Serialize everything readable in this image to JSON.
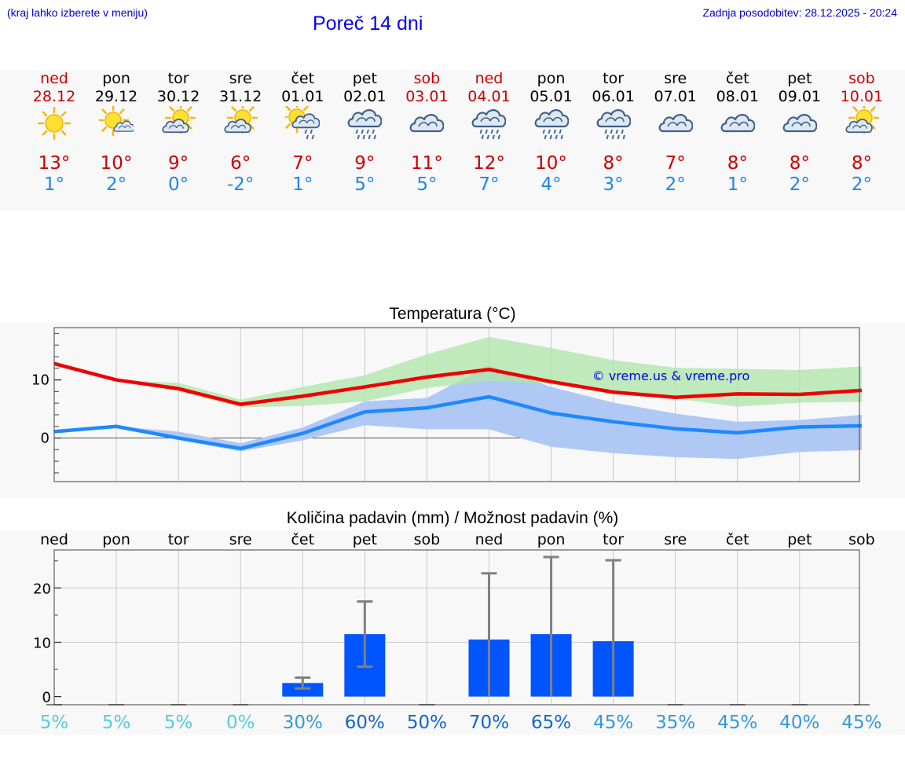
{
  "header": {
    "hint": "(kraj lahko izberete v meniju)",
    "title": "Poreč 14 dni",
    "updated": "Zadnja posodobitev: 28.12.2025 - 20:24"
  },
  "days": [
    {
      "name": "ned",
      "date": "28.12",
      "weekend": true,
      "icon": "sun-icon",
      "tmax": "13°",
      "tmin": "1°"
    },
    {
      "name": "pon",
      "date": "29.12",
      "weekend": false,
      "icon": "sun-small-cloud-icon",
      "tmax": "10°",
      "tmin": "2°"
    },
    {
      "name": "tor",
      "date": "30.12",
      "weekend": false,
      "icon": "sun-cloud-icon",
      "tmax": "9°",
      "tmin": "0°"
    },
    {
      "name": "sre",
      "date": "31.12",
      "weekend": false,
      "icon": "sun-cloud-icon",
      "tmax": "6°",
      "tmin": "-2°"
    },
    {
      "name": "čet",
      "date": "01.01",
      "weekend": false,
      "icon": "sun-cloud-rain-icon",
      "tmax": "7°",
      "tmin": "1°"
    },
    {
      "name": "pet",
      "date": "02.01",
      "weekend": false,
      "icon": "cloud-rain-icon",
      "tmax": "9°",
      "tmin": "5°"
    },
    {
      "name": "sob",
      "date": "03.01",
      "weekend": true,
      "icon": "cloud-icon",
      "tmax": "11°",
      "tmin": "5°"
    },
    {
      "name": "ned",
      "date": "04.01",
      "weekend": true,
      "icon": "cloud-rain-icon",
      "tmax": "12°",
      "tmin": "7°"
    },
    {
      "name": "pon",
      "date": "05.01",
      "weekend": false,
      "icon": "cloud-rain-icon",
      "tmax": "10°",
      "tmin": "4°"
    },
    {
      "name": "tor",
      "date": "06.01",
      "weekend": false,
      "icon": "cloud-rain-icon",
      "tmax": "8°",
      "tmin": "3°"
    },
    {
      "name": "sre",
      "date": "07.01",
      "weekend": false,
      "icon": "cloud-icon",
      "tmax": "7°",
      "tmin": "2°"
    },
    {
      "name": "čet",
      "date": "08.01",
      "weekend": false,
      "icon": "cloud-icon",
      "tmax": "8°",
      "tmin": "1°"
    },
    {
      "name": "pet",
      "date": "09.01",
      "weekend": false,
      "icon": "cloud-icon",
      "tmax": "8°",
      "tmin": "2°"
    },
    {
      "name": "sob",
      "date": "10.01",
      "weekend": true,
      "icon": "sun-cloud-icon",
      "tmax": "8°",
      "tmin": "2°"
    }
  ],
  "colors": {
    "max_line": "#ee0000",
    "min_line": "#1e88ff",
    "max_band": "#aee6a8",
    "min_band": "#b0c8f4",
    "overlap_band": "#7fc3a8",
    "precip_bar": "#0055ff",
    "error_bar": "#808080",
    "weekend": "#cc0000",
    "tmax_text": "#cc0000",
    "tmin_text": "#1e88e5"
  },
  "chart_data": [
    {
      "type": "line",
      "title": "Temperatura (°C)",
      "watermark": "© vreme.us & vreme.pro",
      "yticks": [
        0,
        10
      ],
      "ylim": [
        -7.5,
        19
      ],
      "series": [
        {
          "name": "max",
          "values": [
            12.8,
            10,
            8.5,
            5.8,
            7.2,
            8.8,
            10.5,
            11.8,
            9.7,
            7.9,
            7,
            7.6,
            7.5,
            8.2
          ]
        },
        {
          "name": "min",
          "values": [
            1.1,
            2,
            0,
            -1.8,
            0.8,
            4.5,
            5.2,
            7.1,
            4.3,
            2.8,
            1.6,
            0.9,
            1.9,
            2.1
          ]
        },
        {
          "name": "max_band_low",
          "values": [
            12.8,
            10,
            8,
            5.3,
            5.5,
            6.3,
            8.6,
            9.8,
            9.3,
            7.6,
            6.8,
            5.4,
            6.1,
            6.2
          ]
        },
        {
          "name": "max_band_high",
          "values": [
            12.8,
            10,
            9.5,
            6.6,
            8.8,
            10.8,
            14.4,
            17.4,
            15.5,
            13.4,
            12.1,
            11.9,
            11.7,
            12.3
          ]
        },
        {
          "name": "min_band_low",
          "values": [
            1.1,
            2,
            -0.3,
            -2.3,
            -0.4,
            2.2,
            1.5,
            1.5,
            -1.5,
            -2.6,
            -3.3,
            -3.6,
            -2.4,
            -2.1
          ]
        },
        {
          "name": "min_band_high",
          "values": [
            1.1,
            2,
            1.1,
            -0.9,
            1.8,
            6.3,
            6.9,
            12.5,
            8.8,
            6.1,
            4.2,
            2.8,
            3.1,
            4.0
          ]
        }
      ]
    },
    {
      "type": "bar",
      "title": "Količina padavin (mm) / Možnost padavin (%)",
      "categories": [
        "ned",
        "pon",
        "tor",
        "sre",
        "čet",
        "pet",
        "sob",
        "ned",
        "pon",
        "tor",
        "sre",
        "čet",
        "pet",
        "sob"
      ],
      "yticks": [
        0,
        10,
        20
      ],
      "ylim": [
        -1.5,
        27
      ],
      "values": [
        0,
        0,
        0,
        0,
        2.5,
        11.5,
        0,
        10.5,
        11.5,
        10.2,
        0,
        0,
        0,
        0
      ],
      "error_low": [
        0,
        0,
        0,
        0,
        1.5,
        5.5,
        0,
        0,
        0,
        0,
        0,
        0,
        0,
        0
      ],
      "error_high": [
        0,
        0,
        0,
        0,
        3.5,
        17.5,
        0,
        22.7,
        25.7,
        25.1,
        0,
        0,
        0,
        0
      ],
      "chance": [
        "5%",
        "5%",
        "5%",
        "0%",
        "30%",
        "60%",
        "50%",
        "70%",
        "65%",
        "45%",
        "35%",
        "45%",
        "40%",
        "45%"
      ],
      "chance_colors": [
        "#55ccdd",
        "#55ccdd",
        "#55ccdd",
        "#55ccdd",
        "#3399dd",
        "#1166cc",
        "#1166cc",
        "#1166cc",
        "#1166cc",
        "#3399dd",
        "#3399dd",
        "#3399dd",
        "#3399dd",
        "#3399dd"
      ]
    }
  ]
}
